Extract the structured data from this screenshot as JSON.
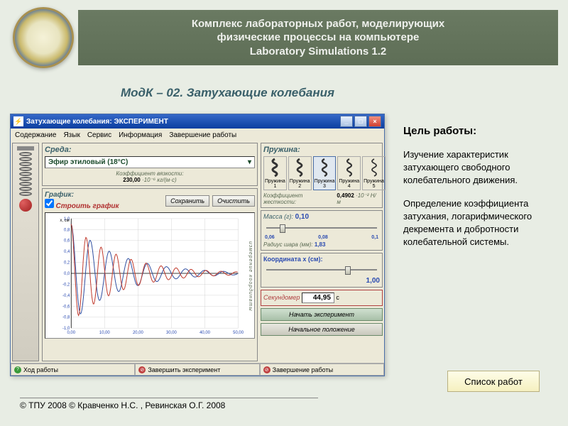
{
  "header": {
    "line1": "Комплекс лабораторных работ, моделирующих",
    "line2": "физические процессы на компьютере",
    "line3": "Laboratory Simulations 1.2"
  },
  "module_title": "МодК – 02. Затухающие колебания",
  "goal": {
    "title": "Цель работы:",
    "p1": "Изучение характеристик затухающего свободного колебательного движения.",
    "p2": "Определение коэффициента затухания, логарифмического декремента и добротности колебательной системы."
  },
  "list_button": "Список работ",
  "copyright": "© ТПУ 2008 © Кравченко Н.С. , Ревинская О.Г. 2008",
  "app": {
    "titlebar": "Затухающие колебания: ЭКСПЕРИМЕНТ",
    "menu": [
      "Содержание",
      "Язык",
      "Сервис",
      "Информация",
      "Завершение работы"
    ],
    "env": {
      "title": "Среда:",
      "selected": "Эфир этиловый (18°C)",
      "viscosity_label": "Коэффициент вязкости:",
      "viscosity_val": "230,00",
      "viscosity_unit": "·10⁻⁶ кг/(м·с)"
    },
    "springs": {
      "title": "Пружина:",
      "items": [
        "Пружина 1",
        "Пружина 2",
        "Пружина 3",
        "Пружина 4",
        "Пружина 5"
      ],
      "selected_index": 2,
      "stiffness_label": "Коэффициент жесткости:",
      "stiffness_val": "0,4902",
      "stiffness_unit": "·10⁻² Н/м"
    },
    "chart": {
      "group_title": "График:",
      "build_label": "Строить график",
      "save_btn": "Сохранить",
      "clear_btn": "Очистить",
      "ylabel": "x, см",
      "yticks": [
        "1,0",
        "0,8",
        "0,6",
        "0,4",
        "0,2",
        "0,0",
        "-0,2",
        "-0,4",
        "-0,6",
        "-0,8",
        "-1,0"
      ],
      "xticks": [
        "0,00",
        "10,00",
        "20,00",
        "30,00",
        "40,00",
        "50,00"
      ],
      "xlim": [
        0,
        50
      ],
      "ylim": [
        -1.0,
        1.0
      ],
      "curves": {
        "red": "#c0392b",
        "blue": "#2e4da0",
        "damping": 0.07,
        "freq_red": 1.4,
        "freq_blue": 1.1,
        "amp": 0.9
      },
      "grid_color": "#000000",
      "background": "#ffffff",
      "vert_label": "измерение координаты"
    },
    "mass": {
      "label": "Масса (г):",
      "value": "0,10",
      "ticks": [
        "0,06",
        "0,08",
        "0,1"
      ],
      "radius_label": "Радиус шара (мм):",
      "radius_val": "1,83"
    },
    "coord": {
      "label": "Координата x (см):",
      "value": "1,00"
    },
    "stopwatch": {
      "label": "Секундомер",
      "value": "44,95",
      "unit": "с"
    },
    "start_btn": "Начать эксперимент",
    "reset_btn": "Начальное положение",
    "bottom": {
      "progress": "Ход работы",
      "finish_exp": "Завершить эксперимент",
      "exit": "Завершение работы"
    }
  }
}
